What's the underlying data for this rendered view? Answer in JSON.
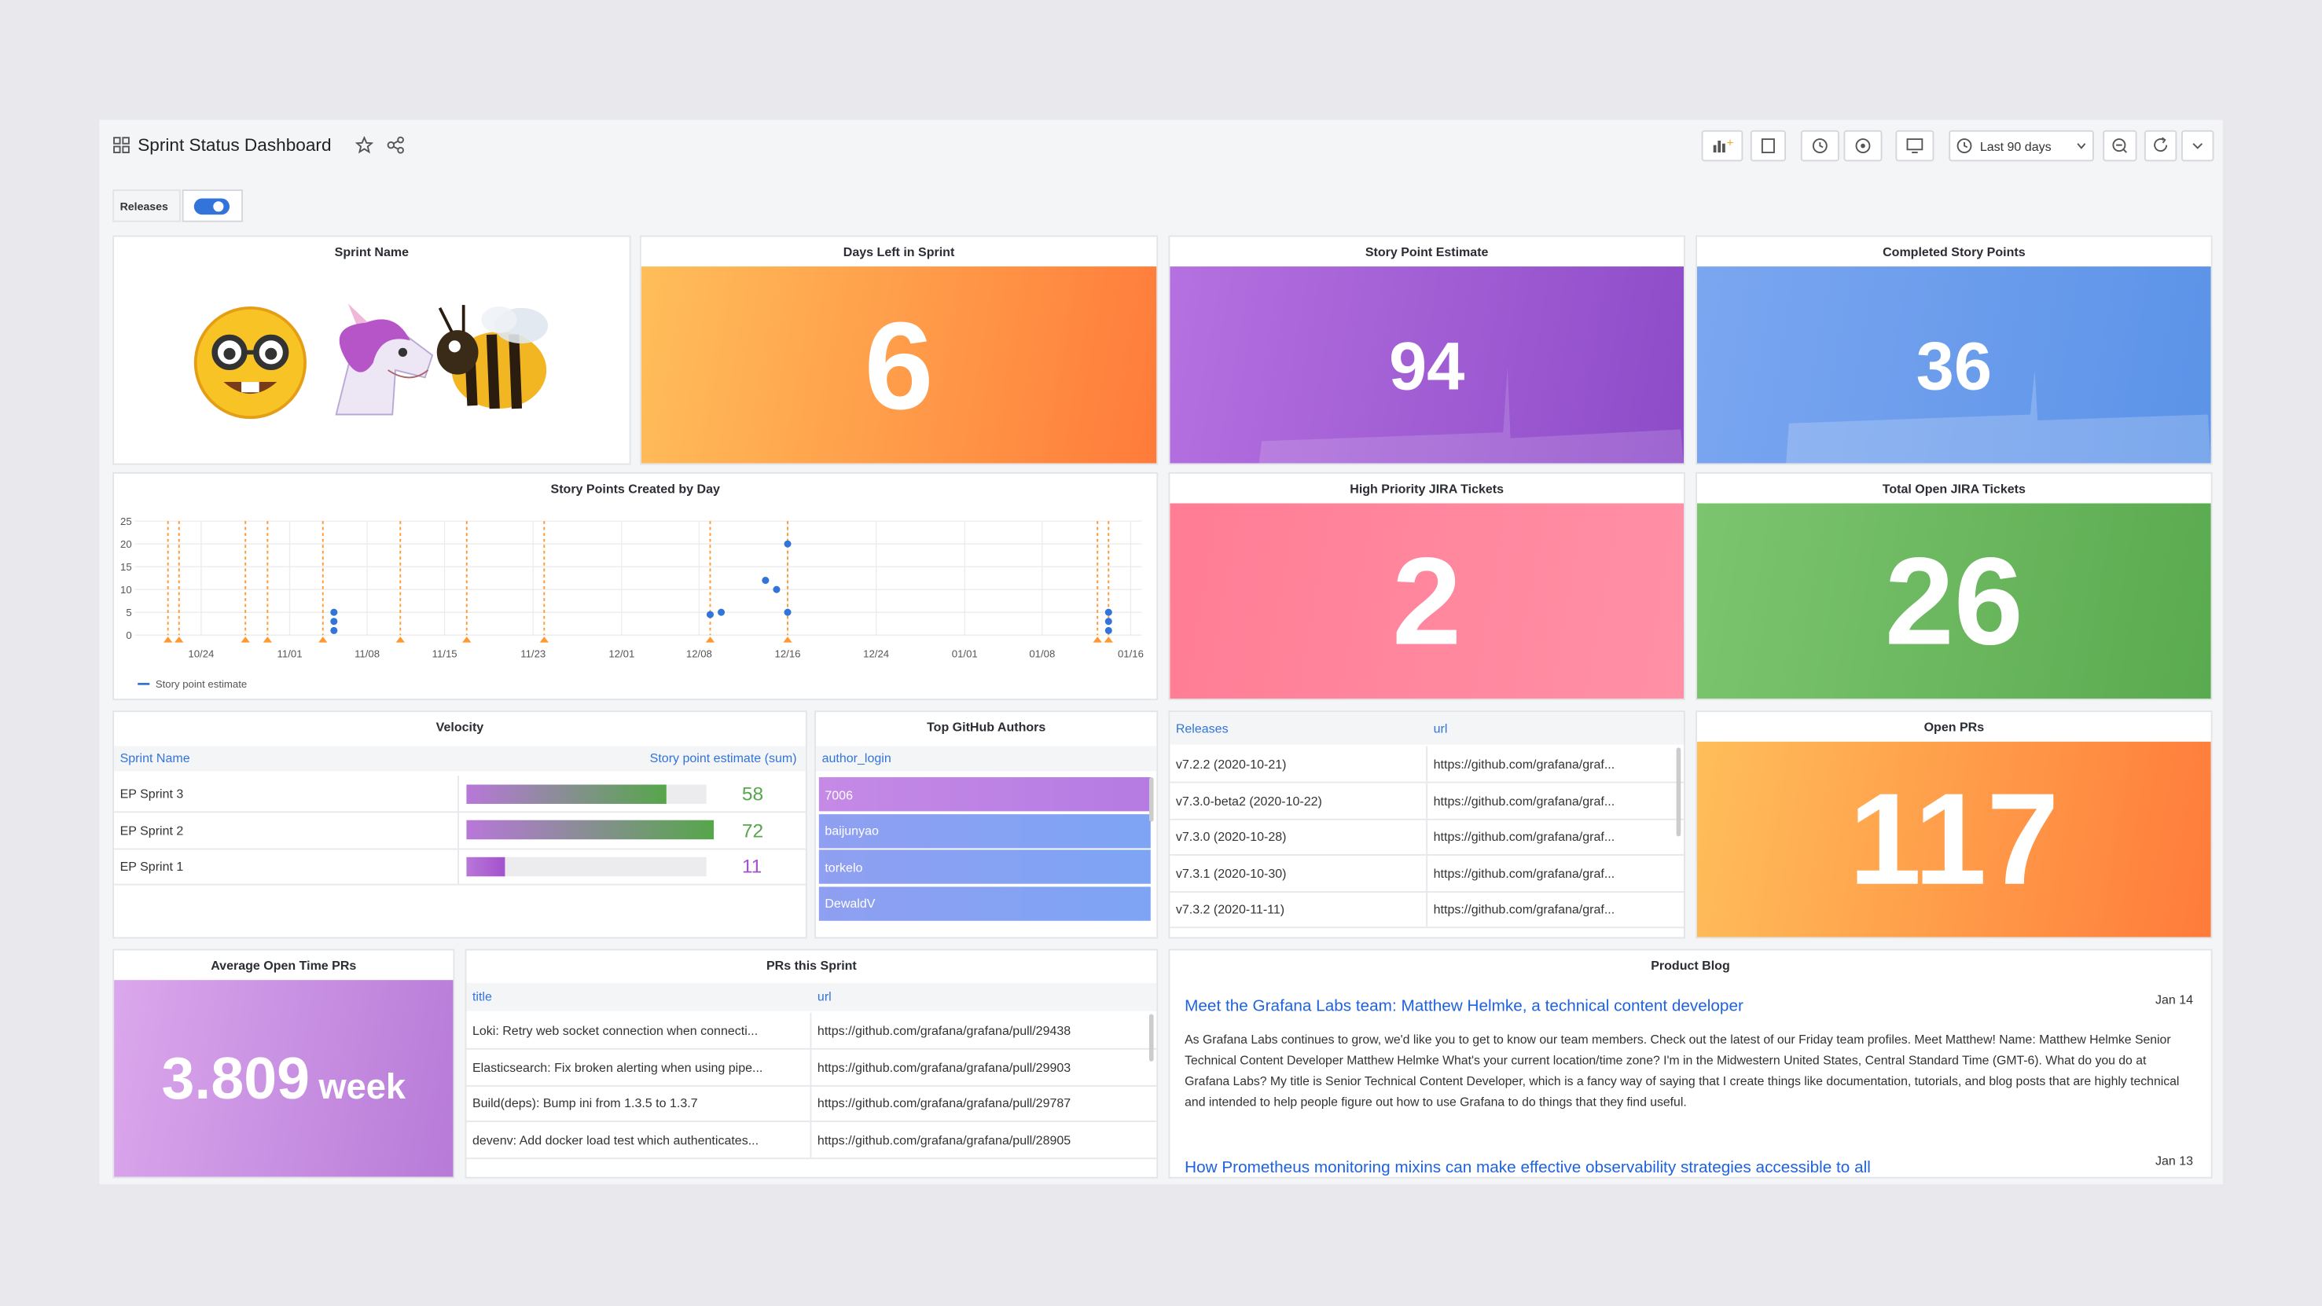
{
  "header": {
    "title": "Sprint Status Dashboard",
    "time_range": "Last 90 days"
  },
  "variables": {
    "label": "Releases"
  },
  "panels": {
    "sprint_name": {
      "title": "Sprint Name"
    },
    "days_left": {
      "title": "Days Left in Sprint",
      "value": 6
    },
    "story_point_estimate": {
      "title": "Story Point Estimate",
      "value": 94
    },
    "completed_story_points": {
      "title": "Completed Story Points",
      "value": 36
    },
    "high_priority": {
      "title": "High Priority JIRA Tickets",
      "value": 2
    },
    "total_open": {
      "title": "Total Open JIRA Tickets",
      "value": 26
    },
    "open_prs": {
      "title": "Open PRs",
      "value": 117
    },
    "avg_open_time": {
      "title": "Average Open Time PRs",
      "value": 3.809,
      "unit": "week"
    },
    "velocity": {
      "title": "Velocity",
      "columns": [
        "Sprint Name",
        "Story point estimate (sum)"
      ],
      "rows": [
        {
          "name": "EP Sprint 3",
          "value": 58,
          "color": "#56a64b"
        },
        {
          "name": "EP Sprint 2",
          "value": 72,
          "color": "#56a64b"
        },
        {
          "name": "EP Sprint 1",
          "value": 11,
          "color": "#a352cc"
        }
      ]
    },
    "github_authors": {
      "title": "Top GitHub Authors",
      "column": "author_login",
      "rows": [
        "7006",
        "baijunyao",
        "torkelo",
        "DewaldV"
      ]
    },
    "releases": {
      "columns": [
        "Releases",
        "url"
      ],
      "rows": [
        [
          "v7.2.2 (2020-10-21)",
          "https://github.com/grafana/graf..."
        ],
        [
          "v7.3.0-beta2 (2020-10-22)",
          "https://github.com/grafana/graf..."
        ],
        [
          "v7.3.0 (2020-10-28)",
          "https://github.com/grafana/graf..."
        ],
        [
          "v7.3.1 (2020-10-30)",
          "https://github.com/grafana/graf..."
        ],
        [
          "v7.3.2 (2020-11-11)",
          "https://github.com/grafana/graf..."
        ]
      ]
    },
    "prs": {
      "title": "PRs this Sprint",
      "columns": [
        "title",
        "url"
      ],
      "rows": [
        [
          "Loki: Retry web socket connection when connecti...",
          "https://github.com/grafana/grafana/pull/29438"
        ],
        [
          "Elasticsearch: Fix broken alerting when using pipe...",
          "https://github.com/grafana/grafana/pull/29903"
        ],
        [
          "Build(deps): Bump ini from 1.3.5 to 1.3.7",
          "https://github.com/grafana/grafana/pull/29787"
        ],
        [
          "devenv: Add docker load test which authenticates...",
          "https://github.com/grafana/grafana/pull/28905"
        ]
      ]
    },
    "blog": {
      "title": "Product Blog",
      "posts": [
        {
          "title": "Meet the Grafana Labs team: Matthew Helmke, a technical content developer",
          "date": "Jan 14",
          "text": "As Grafana Labs continues to grow, we'd like you to get to know our team members. Check out the latest of our Friday team profiles. Meet Matthew! Name: Matthew Helmke Senior Technical Content Developer Matthew Helmke What's your current location/time zone? I'm in the Midwestern United States, Central Standard Time (GMT-6). What do you do at Grafana Labs? My title is Senior Technical Content Developer, which is a fancy way of saying that I create things like documentation, tutorials, and blog posts that are highly technical and intended to help people figure out how to use Grafana to do things that they find useful."
        },
        {
          "title": "How Prometheus monitoring mixins can make effective observability strategies accessible to all",
          "date": "Jan 13"
        }
      ]
    }
  },
  "chart_data": {
    "type": "scatter",
    "title": "Story Points Created by Day",
    "xlim": [
      "10/18",
      "01/17"
    ],
    "xticks": [
      "10/24",
      "11/01",
      "11/08",
      "11/15",
      "11/23",
      "12/01",
      "12/08",
      "12/16",
      "12/24",
      "01/01",
      "01/08",
      "01/16"
    ],
    "ylim": [
      0,
      25
    ],
    "yticks": [
      0,
      5,
      10,
      15,
      20,
      25
    ],
    "grid": true,
    "series": [
      {
        "name": "Story point estimate",
        "color": "#3274d9",
        "x": [
          "11/05",
          "11/05",
          "11/05",
          "12/09",
          "12/10",
          "12/14",
          "12/15",
          "12/16",
          "12/16",
          "01/14",
          "01/14",
          "01/14"
        ],
        "values": [
          5,
          3,
          1,
          4.5,
          5,
          12,
          10,
          20,
          5,
          5,
          3,
          1
        ]
      }
    ],
    "annotations": {
      "color": "#ff9830",
      "x": [
        "10/21",
        "10/22",
        "10/28",
        "10/30",
        "11/04",
        "11/11",
        "11/17",
        "11/24",
        "12/09",
        "12/16",
        "01/13",
        "01/14"
      ]
    }
  }
}
